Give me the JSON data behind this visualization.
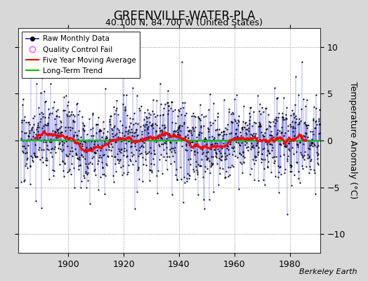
{
  "title": "GREENVILLE-WATER-PLA",
  "subtitle": "40.100 N, 84.700 W (United States)",
  "ylabel": "Temperature Anomaly (°C)",
  "attribution": "Berkeley Earth",
  "year_start": 1883,
  "year_end": 1990,
  "ylim": [
    -12,
    12
  ],
  "yticks": [
    -10,
    -5,
    0,
    5,
    10
  ],
  "xticks": [
    1900,
    1920,
    1940,
    1960,
    1980
  ],
  "bg_color": "#d8d8d8",
  "plot_bg_color": "#ffffff",
  "raw_line_color": "#3333cc",
  "raw_dot_color": "#000000",
  "moving_avg_color": "#ff0000",
  "trend_color": "#00bb00",
  "qc_fail_color": "#ff44ff",
  "seed": 17
}
